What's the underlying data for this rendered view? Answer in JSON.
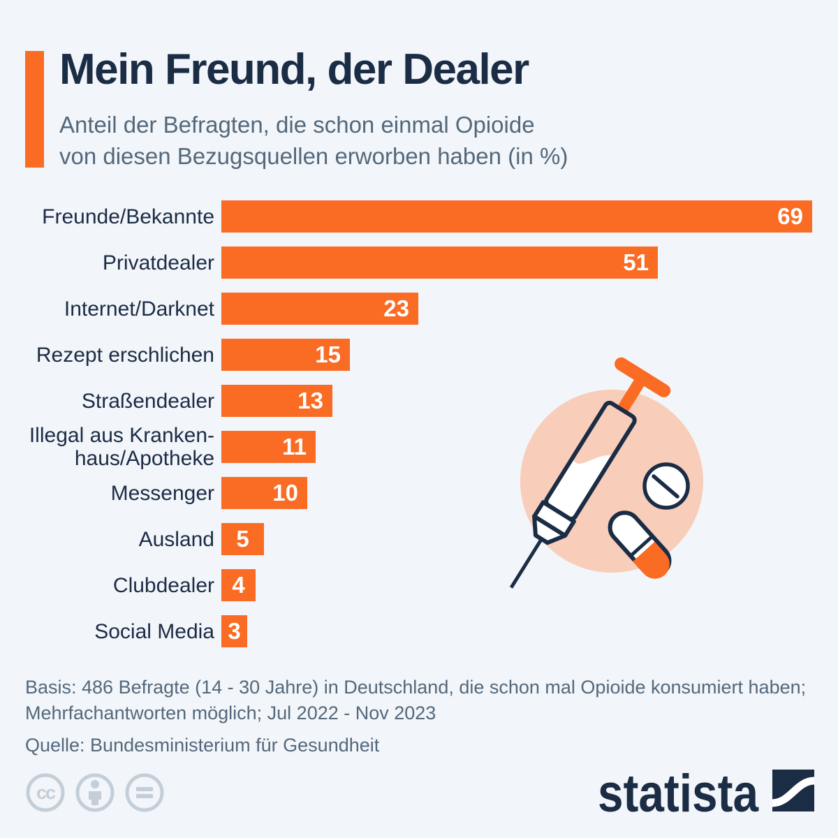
{
  "colors": {
    "background": "#F2F5F9",
    "orange": "#FA6B24",
    "navy": "#1B2C45",
    "slate": "#53687C",
    "peach": "#F8CDB9",
    "license_gray": "#C4CED8",
    "white": "#FFFFFF"
  },
  "header": {
    "title": "Mein Freund, der Dealer",
    "subtitle": "Anteil der Befragten, die schon einmal Opioide\nvon diesen Bezugsquellen erworben haben (in %)"
  },
  "chart_data": {
    "type": "bar",
    "orientation": "horizontal",
    "title": "Mein Freund, der Dealer",
    "subtitle": "Anteil der Befragten, die schon einmal Opioide von diesen Bezugsquellen erworben haben (in %)",
    "unit": "%",
    "categories": [
      "Freunde/Bekannte",
      "Privatdealer",
      "Internet/Darknet",
      "Rezept erschlichen",
      "Straßendealer",
      "Illegal aus Kranken-\nhaus/Apotheke",
      "Messenger",
      "Ausland",
      "Clubdealer",
      "Social Media"
    ],
    "values": [
      69,
      51,
      23,
      15,
      13,
      11,
      10,
      5,
      4,
      3
    ],
    "xlim": [
      0,
      69
    ],
    "grid": false,
    "legend": false,
    "value_labels": "inside-end",
    "bar_color": "#FA6B24"
  },
  "illustration": {
    "name": "syringe-and-pills",
    "circle_color": "#F8CDB9"
  },
  "footer": {
    "basis": "Basis: 486 Befragte (14 - 30 Jahre) in Deutschland, die schon mal Opioide konsumiert haben;\nMehrfachantworten möglich; Jul 2022 - Nov 2023",
    "source": "Quelle: Bundesministerium für Gesundheit"
  },
  "branding": {
    "logo_text": "statista",
    "license_icons": [
      "cc-icon",
      "attribution-person-icon",
      "equals-icon"
    ]
  }
}
